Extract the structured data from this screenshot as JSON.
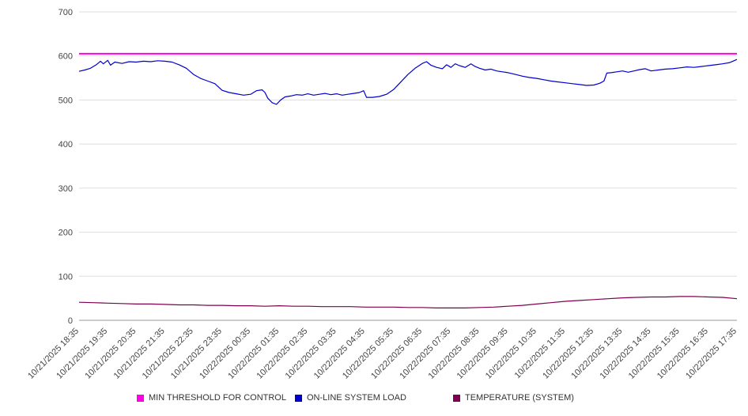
{
  "chart_data": {
    "type": "line",
    "title": "",
    "xlabel": "",
    "ylabel": "",
    "ylim": [
      0,
      700
    ],
    "yticks": [
      0,
      100,
      200,
      300,
      400,
      500,
      600,
      700
    ],
    "x_range": [
      0,
      23
    ],
    "grid": "horizontal",
    "legend_position": "bottom",
    "background": "#ffffff",
    "gridline_color": "#dddddd",
    "axis_line_color": "#999999",
    "x_tick_labels": [
      "10/21/2025 18:35",
      "10/21/2025 19:35",
      "10/21/2025 20:35",
      "10/21/2025 21:35",
      "10/21/2025 22:35",
      "10/21/2025 23:35",
      "10/22/2025 00:35",
      "10/22/2025 01:35",
      "10/22/2025 02:35",
      "10/22/2025 03:35",
      "10/22/2025 04:35",
      "10/22/2025 05:35",
      "10/22/2025 06:35",
      "10/22/2025 07:35",
      "10/22/2025 08:35",
      "10/22/2025 09:35",
      "10/22/2025 10:35",
      "10/22/2025 11:35",
      "10/22/2025 12:35",
      "10/22/2025 13:35",
      "10/22/2025 14:35",
      "10/22/2025 15:35",
      "10/22/2025 16:35",
      "10/22/2025 17:35"
    ],
    "series": [
      {
        "name": "MIN THRESHOLD FOR CONTROL",
        "color": "#ff00e6",
        "width": 2,
        "points": [
          [
            0,
            605
          ],
          [
            23,
            605
          ]
        ]
      },
      {
        "name": "ON-LINE SYSTEM LOAD",
        "color": "#0000cc",
        "width": 1.2,
        "points": [
          [
            0,
            565
          ],
          [
            0.2,
            568
          ],
          [
            0.4,
            572
          ],
          [
            0.6,
            580
          ],
          [
            0.75,
            588
          ],
          [
            0.85,
            582
          ],
          [
            1.0,
            590
          ],
          [
            1.1,
            579
          ],
          [
            1.25,
            586
          ],
          [
            1.5,
            583
          ],
          [
            1.75,
            587
          ],
          [
            2.0,
            586
          ],
          [
            2.25,
            588
          ],
          [
            2.5,
            587
          ],
          [
            2.75,
            589
          ],
          [
            3.0,
            588
          ],
          [
            3.25,
            586
          ],
          [
            3.5,
            580
          ],
          [
            3.75,
            572
          ],
          [
            4.0,
            558
          ],
          [
            4.25,
            549
          ],
          [
            4.5,
            543
          ],
          [
            4.75,
            537
          ],
          [
            5.0,
            522
          ],
          [
            5.25,
            517
          ],
          [
            5.5,
            514
          ],
          [
            5.75,
            511
          ],
          [
            6.0,
            513
          ],
          [
            6.2,
            521
          ],
          [
            6.4,
            523
          ],
          [
            6.5,
            517
          ],
          [
            6.6,
            504
          ],
          [
            6.75,
            494
          ],
          [
            6.9,
            490
          ],
          [
            7.05,
            500
          ],
          [
            7.2,
            507
          ],
          [
            7.4,
            509
          ],
          [
            7.6,
            512
          ],
          [
            7.8,
            511
          ],
          [
            8.0,
            514
          ],
          [
            8.2,
            511
          ],
          [
            8.4,
            513
          ],
          [
            8.6,
            515
          ],
          [
            8.8,
            512
          ],
          [
            9.0,
            514
          ],
          [
            9.2,
            511
          ],
          [
            9.4,
            513
          ],
          [
            9.6,
            515
          ],
          [
            9.8,
            517
          ],
          [
            9.95,
            521
          ],
          [
            10.05,
            506
          ],
          [
            10.25,
            506
          ],
          [
            10.5,
            508
          ],
          [
            10.75,
            513
          ],
          [
            11.0,
            524
          ],
          [
            11.25,
            541
          ],
          [
            11.5,
            558
          ],
          [
            11.75,
            572
          ],
          [
            12.0,
            583
          ],
          [
            12.15,
            587
          ],
          [
            12.3,
            579
          ],
          [
            12.5,
            574
          ],
          [
            12.7,
            571
          ],
          [
            12.85,
            580
          ],
          [
            13.0,
            574
          ],
          [
            13.15,
            582
          ],
          [
            13.3,
            578
          ],
          [
            13.5,
            574
          ],
          [
            13.7,
            582
          ],
          [
            13.85,
            576
          ],
          [
            14.0,
            572
          ],
          [
            14.2,
            568
          ],
          [
            14.4,
            570
          ],
          [
            14.6,
            566
          ],
          [
            14.8,
            564
          ],
          [
            15.0,
            562
          ],
          [
            15.25,
            558
          ],
          [
            15.5,
            554
          ],
          [
            15.75,
            551
          ],
          [
            16.0,
            549
          ],
          [
            16.25,
            546
          ],
          [
            16.5,
            543
          ],
          [
            16.75,
            541
          ],
          [
            17.0,
            539
          ],
          [
            17.25,
            537
          ],
          [
            17.5,
            535
          ],
          [
            17.75,
            533
          ],
          [
            18.0,
            534
          ],
          [
            18.2,
            538
          ],
          [
            18.35,
            543
          ],
          [
            18.45,
            561
          ],
          [
            18.6,
            562
          ],
          [
            18.8,
            564
          ],
          [
            19.0,
            566
          ],
          [
            19.2,
            563
          ],
          [
            19.4,
            566
          ],
          [
            19.6,
            569
          ],
          [
            19.8,
            571
          ],
          [
            20.0,
            566
          ],
          [
            20.25,
            568
          ],
          [
            20.5,
            570
          ],
          [
            20.75,
            571
          ],
          [
            21.0,
            573
          ],
          [
            21.25,
            575
          ],
          [
            21.5,
            574
          ],
          [
            21.75,
            576
          ],
          [
            22.0,
            578
          ],
          [
            22.25,
            580
          ],
          [
            22.5,
            582
          ],
          [
            22.75,
            585
          ],
          [
            23.0,
            592
          ]
        ]
      },
      {
        "name": "TEMPERATURE (SYSTEM)",
        "color": "#7d0050",
        "width": 1.2,
        "points": [
          [
            0,
            41
          ],
          [
            0.5,
            40
          ],
          [
            1,
            39
          ],
          [
            1.5,
            38
          ],
          [
            2,
            37
          ],
          [
            2.5,
            37
          ],
          [
            3,
            36
          ],
          [
            3.5,
            35
          ],
          [
            4,
            35
          ],
          [
            4.5,
            34
          ],
          [
            5,
            34
          ],
          [
            5.5,
            33
          ],
          [
            6,
            33
          ],
          [
            6.5,
            32
          ],
          [
            7,
            33
          ],
          [
            7.5,
            32
          ],
          [
            8,
            32
          ],
          [
            8.5,
            31
          ],
          [
            9,
            31
          ],
          [
            9.5,
            31
          ],
          [
            10,
            30
          ],
          [
            10.5,
            30
          ],
          [
            11,
            30
          ],
          [
            11.5,
            29
          ],
          [
            12,
            29
          ],
          [
            12.5,
            28
          ],
          [
            13,
            28
          ],
          [
            13.5,
            28
          ],
          [
            14,
            29
          ],
          [
            14.5,
            30
          ],
          [
            15,
            32
          ],
          [
            15.5,
            34
          ],
          [
            16,
            37
          ],
          [
            16.5,
            40
          ],
          [
            17,
            43
          ],
          [
            17.5,
            45
          ],
          [
            18,
            47
          ],
          [
            18.5,
            49
          ],
          [
            19,
            51
          ],
          [
            19.5,
            52
          ],
          [
            20,
            53
          ],
          [
            20.5,
            53
          ],
          [
            21,
            54
          ],
          [
            21.5,
            54
          ],
          [
            22,
            53
          ],
          [
            22.5,
            52
          ],
          [
            23,
            49
          ]
        ]
      }
    ]
  }
}
